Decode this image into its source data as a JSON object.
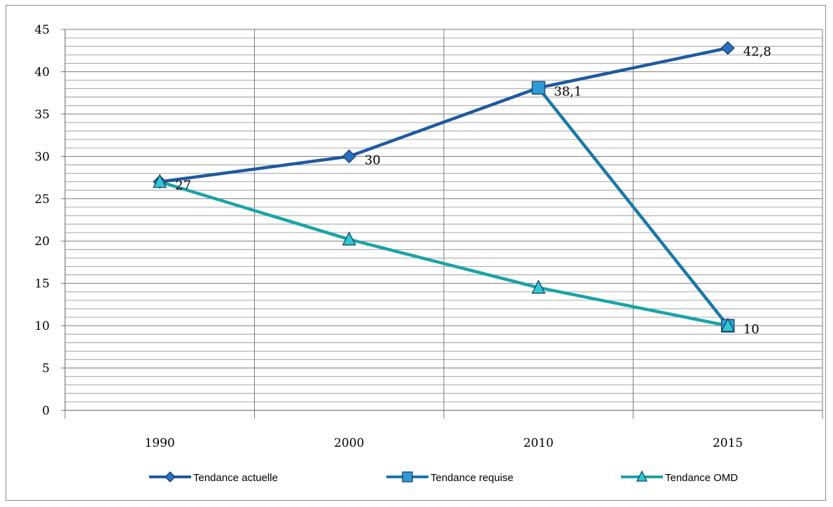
{
  "chart_data": {
    "type": "line",
    "categories": [
      "1990",
      "2000",
      "2010",
      "2015"
    ],
    "ylim": [
      0,
      45
    ],
    "y_major_step": 5,
    "y_minor_step": 1,
    "y_ticks": [
      "0",
      "5",
      "10",
      "15",
      "20",
      "25",
      "30",
      "35",
      "40",
      "45"
    ],
    "grid": true,
    "legend_position": "bottom",
    "series": [
      {
        "name": "Tendance actuelle",
        "marker": "diamond",
        "color": "#1f5aa0",
        "marker_fill": "#2a6fc2",
        "points": [
          [
            0,
            27
          ],
          [
            1,
            30
          ],
          [
            2,
            38.1
          ],
          [
            3,
            42.8
          ]
        ],
        "labels": [
          {
            "text": "27",
            "at": 0
          },
          {
            "text": "30",
            "at": 1
          },
          {
            "text": "42,8",
            "at": 3
          }
        ]
      },
      {
        "name": "Tendance requise",
        "marker": "square",
        "color": "#1a78a8",
        "marker_fill": "#2e9bd6",
        "points": [
          [
            2,
            38.1
          ],
          [
            3,
            10
          ]
        ],
        "labels": [
          {
            "text": "38,1",
            "at": 0
          },
          {
            "text": "10",
            "at": 1
          }
        ]
      },
      {
        "name": "Tendance  OMD",
        "marker": "triangle",
        "color": "#1aa3a8",
        "marker_fill": "#2ec9cf",
        "points": [
          [
            0,
            27
          ],
          [
            1,
            20.2
          ],
          [
            2,
            14.5
          ],
          [
            3,
            10
          ]
        ],
        "labels": []
      }
    ]
  }
}
